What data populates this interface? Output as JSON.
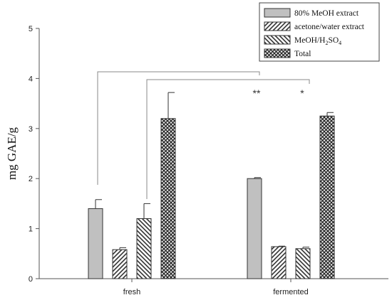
{
  "chart_data": {
    "type": "bar",
    "categories": [
      "fresh",
      "fermented"
    ],
    "ylabel_main": "mg GAE/",
    "ylabel_unit": "g",
    "ylim": [
      0,
      5
    ],
    "yticks": [
      "0",
      "1",
      "2",
      "3",
      "4",
      "5"
    ],
    "series": [
      {
        "name": "80% MeOH extract",
        "pattern": "solid-gray",
        "values": [
          1.4,
          2.0
        ],
        "errors": [
          0.18,
          0.02
        ]
      },
      {
        "name": "acetone/water extract",
        "pattern": "diag-right",
        "values": [
          0.58,
          0.64
        ],
        "errors": [
          0.04,
          0.01
        ]
      },
      {
        "name_parts": [
          "MeOH/H",
          "2",
          "SO",
          "4"
        ],
        "pattern": "diag-left",
        "values": [
          1.2,
          0.6
        ],
        "errors": [
          0.3,
          0.03
        ]
      },
      {
        "name": "Total",
        "pattern": "crosshatch",
        "values": [
          3.2,
          3.25
        ],
        "errors": [
          0.52,
          0.07
        ]
      }
    ],
    "significance": [
      "**",
      "*"
    ],
    "legend_position": "top-right",
    "grid": false,
    "colors": {
      "bar_fill": "#c0c0c0",
      "bar_stroke": "#333333",
      "axis": "#555555",
      "bracket": "#888888"
    }
  }
}
